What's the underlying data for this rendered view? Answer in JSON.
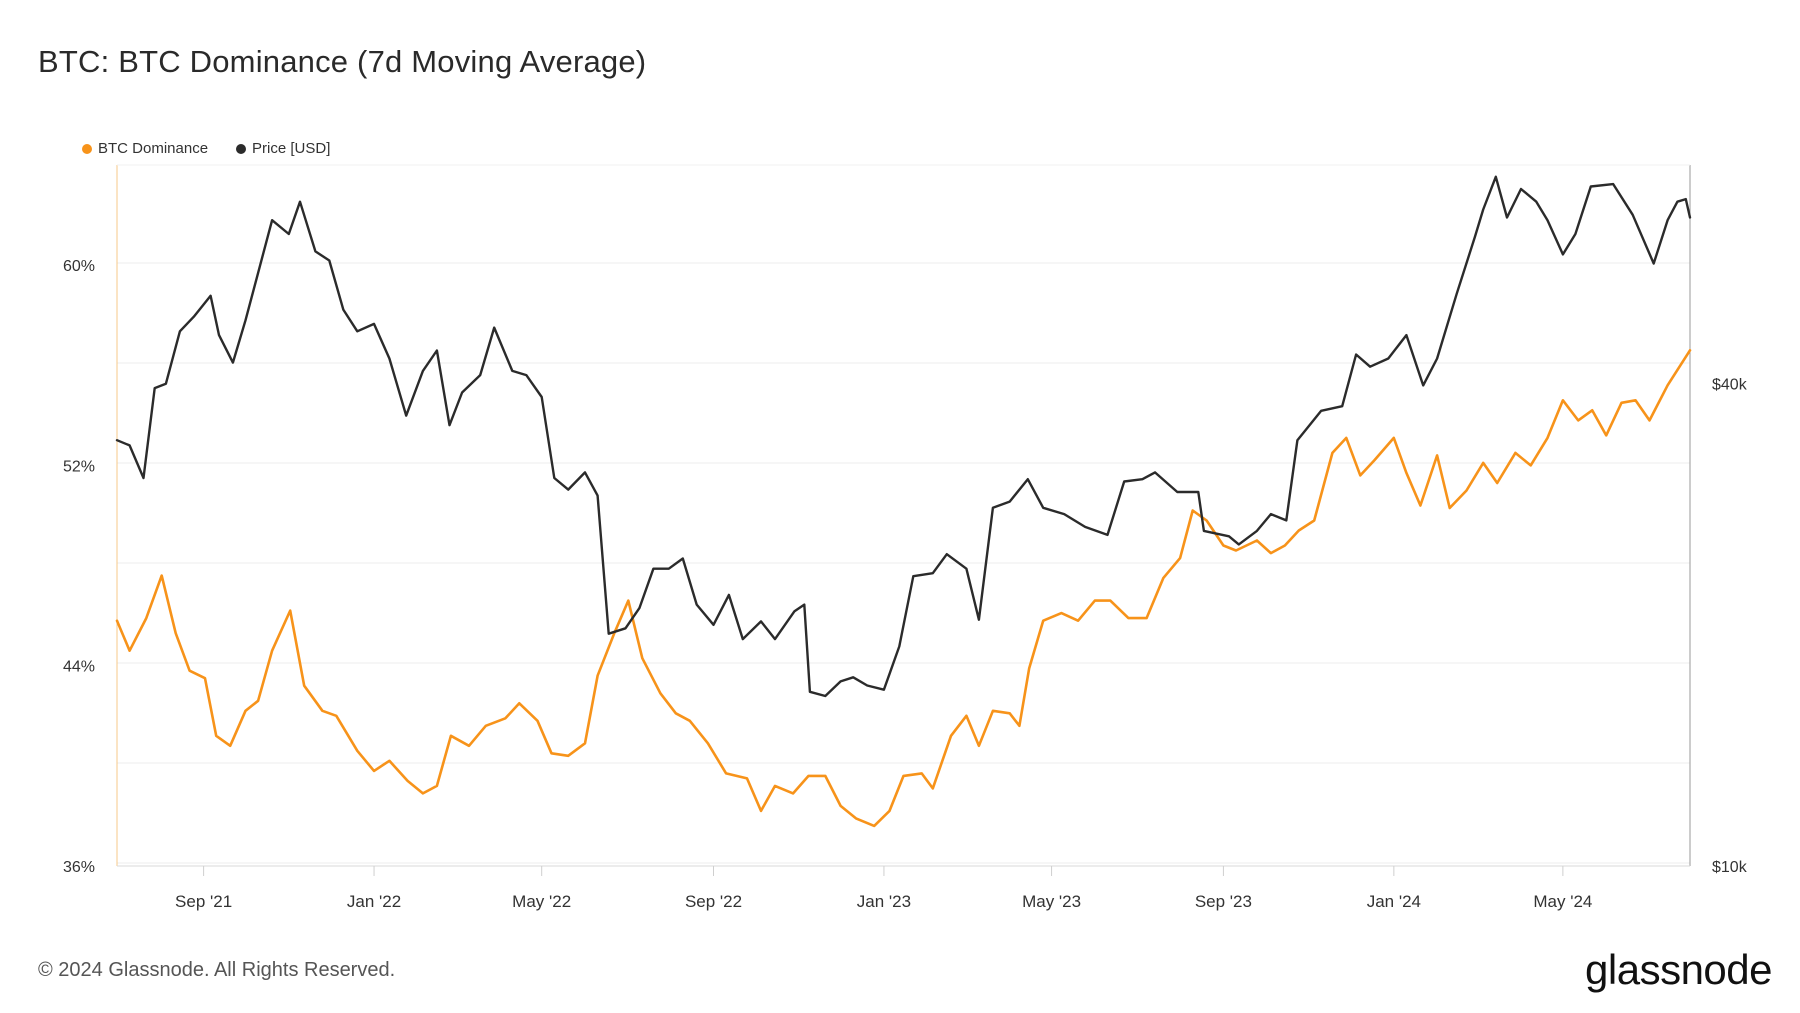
{
  "title": "BTC: BTC Dominance (7d Moving Average)",
  "legend": [
    {
      "label": "BTC Dominance",
      "color": "#f7931a"
    },
    {
      "label": "Price [USD]",
      "color": "#2b2b2b"
    }
  ],
  "footer": "© 2024 Glassnode. All Rights Reserved.",
  "logo": "glassnode",
  "chart_data": {
    "type": "line",
    "x_start": "2021-07-01",
    "x_end": "2024-07-31",
    "x_ticks": [
      "Sep '21",
      "Jan '22",
      "May '22",
      "Sep '22",
      "Jan '23",
      "May '23",
      "Sep '23",
      "Jan '24",
      "May '24"
    ],
    "x_tick_dates": [
      "2021-09-01",
      "2022-01-01",
      "2022-05-01",
      "2022-09-01",
      "2023-01-01",
      "2023-05-01",
      "2023-09-01",
      "2024-01-01",
      "2024-05-01"
    ],
    "y_left": {
      "ticks": [
        "36%",
        "44%",
        "52%",
        "60%"
      ],
      "tick_values": [
        36,
        44,
        52,
        60
      ],
      "range": [
        36,
        64
      ]
    },
    "y_right": {
      "ticks": [
        "$10k",
        "$40k"
      ],
      "tick_values": [
        10000,
        40000
      ],
      "scale": "log",
      "range": [
        10000,
        75000
      ]
    },
    "series": [
      {
        "name": "BTC Dominance",
        "color": "#f7931a",
        "axis": "left",
        "unit": "%",
        "points": [
          [
            "2021-07-01",
            45.8
          ],
          [
            "2021-07-10",
            44.6
          ],
          [
            "2021-07-22",
            45.9
          ],
          [
            "2021-08-02",
            47.6
          ],
          [
            "2021-08-12",
            45.3
          ],
          [
            "2021-08-22",
            43.8
          ],
          [
            "2021-09-02",
            43.5
          ],
          [
            "2021-09-10",
            41.2
          ],
          [
            "2021-09-20",
            40.8
          ],
          [
            "2021-10-01",
            42.2
          ],
          [
            "2021-10-10",
            42.6
          ],
          [
            "2021-10-20",
            44.6
          ],
          [
            "2021-11-02",
            46.2
          ],
          [
            "2021-11-12",
            43.2
          ],
          [
            "2021-11-25",
            42.2
          ],
          [
            "2021-12-05",
            42.0
          ],
          [
            "2021-12-20",
            40.6
          ],
          [
            "2022-01-01",
            39.8
          ],
          [
            "2022-01-12",
            40.2
          ],
          [
            "2022-01-25",
            39.4
          ],
          [
            "2022-02-05",
            38.9
          ],
          [
            "2022-02-15",
            39.2
          ],
          [
            "2022-02-25",
            41.2
          ],
          [
            "2022-03-10",
            40.8
          ],
          [
            "2022-03-22",
            41.6
          ],
          [
            "2022-04-05",
            41.9
          ],
          [
            "2022-04-15",
            42.5
          ],
          [
            "2022-04-28",
            41.8
          ],
          [
            "2022-05-08",
            40.5
          ],
          [
            "2022-05-20",
            40.4
          ],
          [
            "2022-06-01",
            40.9
          ],
          [
            "2022-06-10",
            43.6
          ],
          [
            "2022-06-22",
            45.3
          ],
          [
            "2022-07-02",
            46.6
          ],
          [
            "2022-07-12",
            44.3
          ],
          [
            "2022-07-25",
            42.9
          ],
          [
            "2022-08-05",
            42.1
          ],
          [
            "2022-08-15",
            41.8
          ],
          [
            "2022-08-28",
            40.9
          ],
          [
            "2022-09-10",
            39.7
          ],
          [
            "2022-09-25",
            39.5
          ],
          [
            "2022-10-05",
            38.2
          ],
          [
            "2022-10-15",
            39.2
          ],
          [
            "2022-10-28",
            38.9
          ],
          [
            "2022-11-08",
            39.6
          ],
          [
            "2022-11-20",
            39.6
          ],
          [
            "2022-12-01",
            38.4
          ],
          [
            "2022-12-12",
            37.9
          ],
          [
            "2022-12-25",
            37.6
          ],
          [
            "2023-01-05",
            38.2
          ],
          [
            "2023-01-15",
            39.6
          ],
          [
            "2023-01-28",
            39.7
          ],
          [
            "2023-02-05",
            39.1
          ],
          [
            "2023-02-18",
            41.2
          ],
          [
            "2023-03-01",
            42.0
          ],
          [
            "2023-03-10",
            40.8
          ],
          [
            "2023-03-20",
            42.2
          ],
          [
            "2023-04-01",
            42.1
          ],
          [
            "2023-04-08",
            41.6
          ],
          [
            "2023-04-15",
            43.9
          ],
          [
            "2023-04-25",
            45.8
          ],
          [
            "2023-05-08",
            46.1
          ],
          [
            "2023-05-20",
            45.8
          ],
          [
            "2023-06-01",
            46.6
          ],
          [
            "2023-06-12",
            46.6
          ],
          [
            "2023-06-25",
            45.9
          ],
          [
            "2023-07-08",
            45.9
          ],
          [
            "2023-07-20",
            47.5
          ],
          [
            "2023-08-01",
            48.3
          ],
          [
            "2023-08-10",
            50.2
          ],
          [
            "2023-08-20",
            49.8
          ],
          [
            "2023-09-01",
            48.8
          ],
          [
            "2023-09-10",
            48.6
          ],
          [
            "2023-09-25",
            49.0
          ],
          [
            "2023-10-05",
            48.5
          ],
          [
            "2023-10-15",
            48.8
          ],
          [
            "2023-10-25",
            49.4
          ],
          [
            "2023-11-05",
            49.8
          ],
          [
            "2023-11-18",
            52.5
          ],
          [
            "2023-11-28",
            53.1
          ],
          [
            "2023-12-08",
            51.6
          ],
          [
            "2023-12-18",
            52.2
          ],
          [
            "2024-01-01",
            53.1
          ],
          [
            "2024-01-10",
            51.7
          ],
          [
            "2024-01-20",
            50.4
          ],
          [
            "2024-02-01",
            52.4
          ],
          [
            "2024-02-10",
            50.3
          ],
          [
            "2024-02-22",
            51.0
          ],
          [
            "2024-03-05",
            52.1
          ],
          [
            "2024-03-15",
            51.3
          ],
          [
            "2024-03-28",
            52.5
          ],
          [
            "2024-04-08",
            52.0
          ],
          [
            "2024-04-20",
            53.1
          ],
          [
            "2024-05-01",
            54.6
          ],
          [
            "2024-05-12",
            53.8
          ],
          [
            "2024-05-22",
            54.2
          ],
          [
            "2024-06-01",
            53.2
          ],
          [
            "2024-06-12",
            54.5
          ],
          [
            "2024-06-22",
            54.6
          ],
          [
            "2024-07-02",
            53.8
          ],
          [
            "2024-07-15",
            55.2
          ],
          [
            "2024-07-31",
            56.6
          ]
        ]
      },
      {
        "name": "Price [USD]",
        "color": "#2b2b2b",
        "axis": "right",
        "unit": "USD",
        "points": [
          [
            "2021-07-01",
            34000
          ],
          [
            "2021-07-10",
            33500
          ],
          [
            "2021-07-20",
            30500
          ],
          [
            "2021-07-28",
            39500
          ],
          [
            "2021-08-05",
            40000
          ],
          [
            "2021-08-15",
            46500
          ],
          [
            "2021-08-25",
            48500
          ],
          [
            "2021-09-06",
            51500
          ],
          [
            "2021-09-12",
            46000
          ],
          [
            "2021-09-22",
            42500
          ],
          [
            "2021-10-01",
            48000
          ],
          [
            "2021-10-10",
            55000
          ],
          [
            "2021-10-20",
            64000
          ],
          [
            "2021-11-01",
            61500
          ],
          [
            "2021-11-09",
            67500
          ],
          [
            "2021-11-20",
            58500
          ],
          [
            "2021-11-30",
            57000
          ],
          [
            "2021-12-10",
            49500
          ],
          [
            "2021-12-20",
            46500
          ],
          [
            "2022-01-01",
            47500
          ],
          [
            "2022-01-12",
            43000
          ],
          [
            "2022-01-24",
            36500
          ],
          [
            "2022-02-05",
            41500
          ],
          [
            "2022-02-15",
            44000
          ],
          [
            "2022-02-24",
            35500
          ],
          [
            "2022-03-05",
            39000
          ],
          [
            "2022-03-18",
            41000
          ],
          [
            "2022-03-28",
            47000
          ],
          [
            "2022-04-10",
            41500
          ],
          [
            "2022-04-20",
            41000
          ],
          [
            "2022-05-01",
            38500
          ],
          [
            "2022-05-10",
            30500
          ],
          [
            "2022-05-20",
            29500
          ],
          [
            "2022-06-01",
            31000
          ],
          [
            "2022-06-10",
            29000
          ],
          [
            "2022-06-18",
            19500
          ],
          [
            "2022-06-30",
            19800
          ],
          [
            "2022-07-10",
            21000
          ],
          [
            "2022-07-20",
            23500
          ],
          [
            "2022-07-31",
            23500
          ],
          [
            "2022-08-10",
            24200
          ],
          [
            "2022-08-20",
            21200
          ],
          [
            "2022-09-01",
            20000
          ],
          [
            "2022-09-12",
            21800
          ],
          [
            "2022-09-22",
            19200
          ],
          [
            "2022-10-05",
            20200
          ],
          [
            "2022-10-15",
            19200
          ],
          [
            "2022-10-29",
            20800
          ],
          [
            "2022-11-05",
            21200
          ],
          [
            "2022-11-09",
            16500
          ],
          [
            "2022-11-20",
            16300
          ],
          [
            "2022-12-01",
            17000
          ],
          [
            "2022-12-10",
            17200
          ],
          [
            "2022-12-20",
            16800
          ],
          [
            "2023-01-01",
            16600
          ],
          [
            "2023-01-12",
            18800
          ],
          [
            "2023-01-22",
            23000
          ],
          [
            "2023-02-05",
            23200
          ],
          [
            "2023-02-15",
            24500
          ],
          [
            "2023-03-01",
            23500
          ],
          [
            "2023-03-10",
            20300
          ],
          [
            "2023-03-20",
            28000
          ],
          [
            "2023-04-01",
            28500
          ],
          [
            "2023-04-14",
            30400
          ],
          [
            "2023-04-25",
            28000
          ],
          [
            "2023-05-10",
            27500
          ],
          [
            "2023-05-25",
            26500
          ],
          [
            "2023-06-10",
            25900
          ],
          [
            "2023-06-22",
            30200
          ],
          [
            "2023-07-05",
            30400
          ],
          [
            "2023-07-14",
            31000
          ],
          [
            "2023-07-30",
            29300
          ],
          [
            "2023-08-14",
            29300
          ],
          [
            "2023-08-18",
            26200
          ],
          [
            "2023-09-05",
            25800
          ],
          [
            "2023-09-12",
            25200
          ],
          [
            "2023-09-25",
            26200
          ],
          [
            "2023-10-05",
            27500
          ],
          [
            "2023-10-16",
            27000
          ],
          [
            "2023-10-24",
            34000
          ],
          [
            "2023-11-10",
            37000
          ],
          [
            "2023-11-25",
            37500
          ],
          [
            "2023-12-05",
            43500
          ],
          [
            "2023-12-15",
            42000
          ],
          [
            "2023-12-28",
            43000
          ],
          [
            "2024-01-10",
            46000
          ],
          [
            "2024-01-22",
            39800
          ],
          [
            "2024-02-01",
            43000
          ],
          [
            "2024-02-15",
            51800
          ],
          [
            "2024-02-28",
            61000
          ],
          [
            "2024-03-05",
            66000
          ],
          [
            "2024-03-14",
            72500
          ],
          [
            "2024-03-22",
            64500
          ],
          [
            "2024-04-01",
            70000
          ],
          [
            "2024-04-12",
            67500
          ],
          [
            "2024-04-20",
            64000
          ],
          [
            "2024-05-01",
            58000
          ],
          [
            "2024-05-10",
            61500
          ],
          [
            "2024-05-21",
            70500
          ],
          [
            "2024-06-06",
            71000
          ],
          [
            "2024-06-20",
            65000
          ],
          [
            "2024-07-05",
            56500
          ],
          [
            "2024-07-15",
            64000
          ],
          [
            "2024-07-22",
            67500
          ],
          [
            "2024-07-28",
            68000
          ],
          [
            "2024-07-31",
            64500
          ]
        ]
      }
    ]
  }
}
